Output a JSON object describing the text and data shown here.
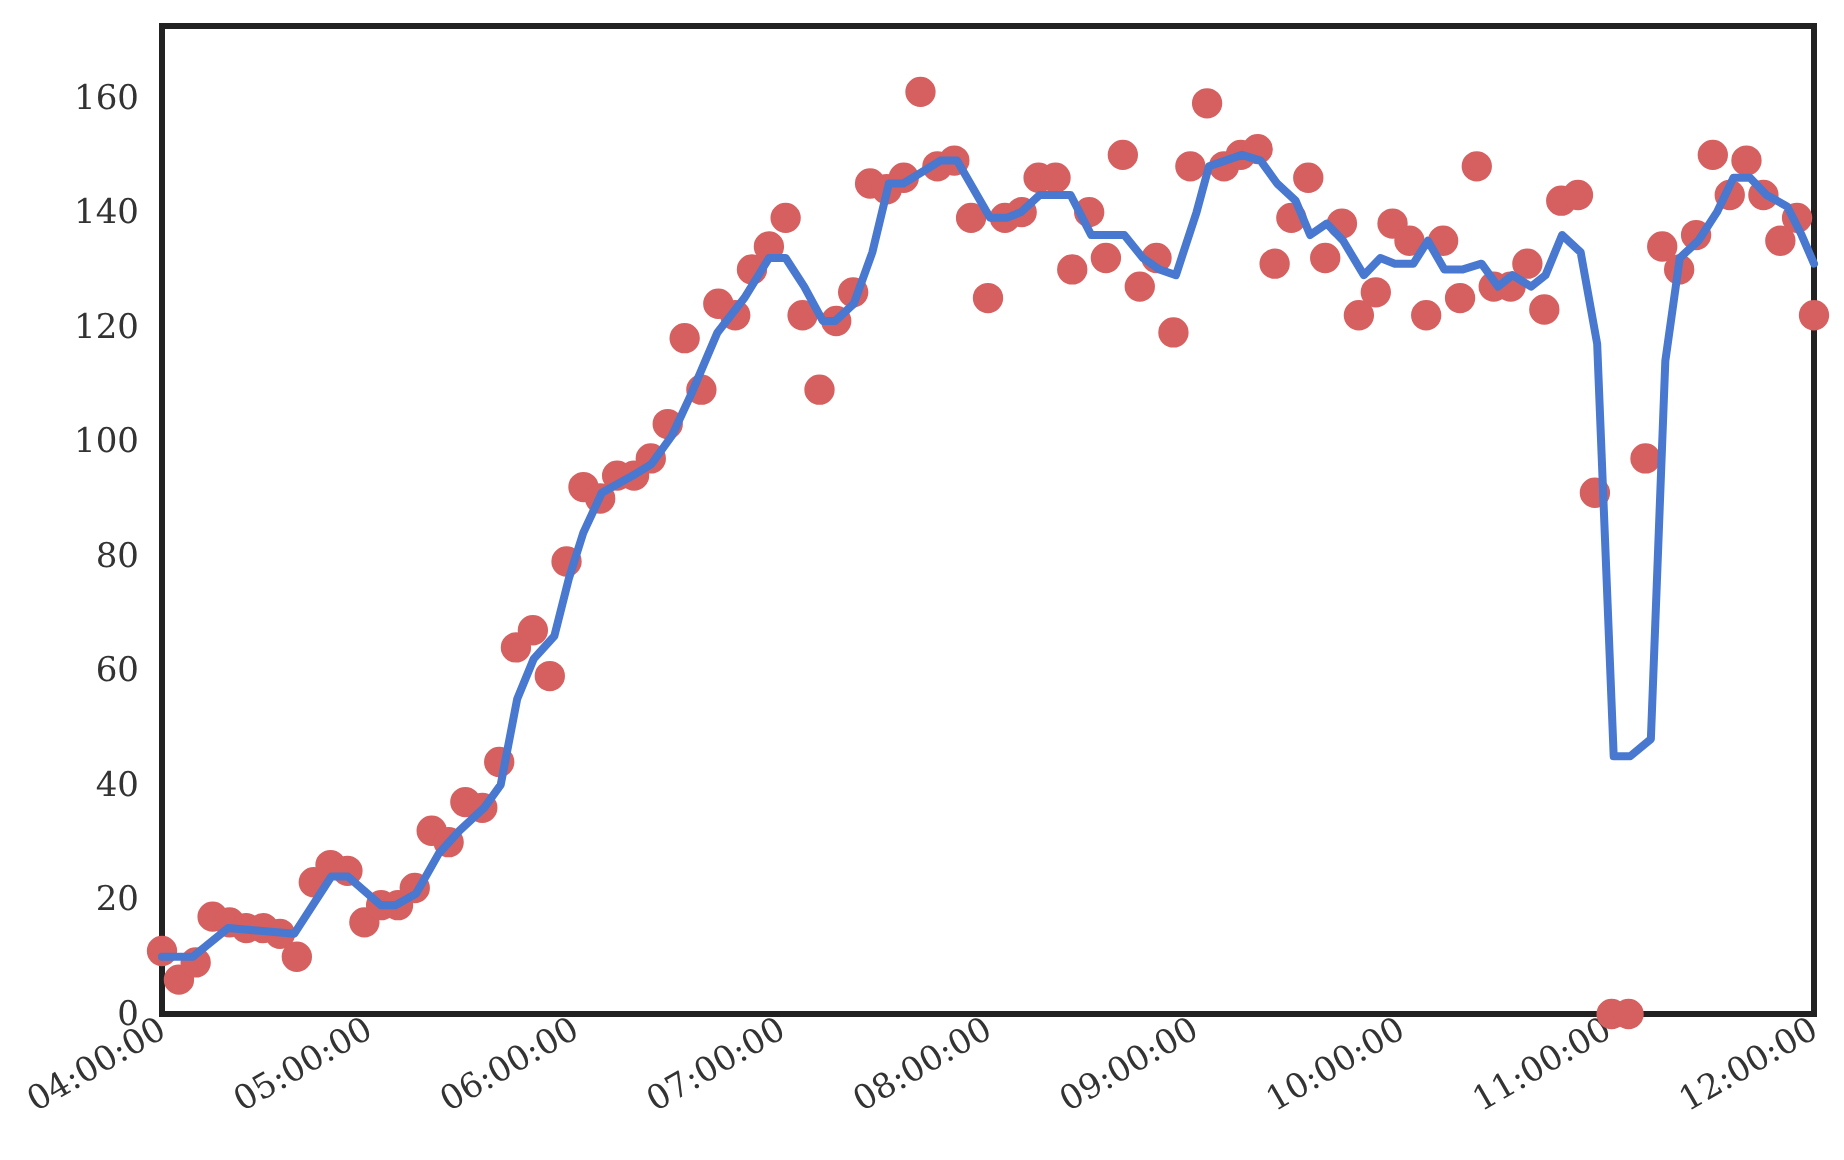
{
  "chart_data": {
    "type": "scatter",
    "xlim": [
      4,
      12
    ],
    "ylim": [
      0,
      172.5
    ],
    "xticks": [
      {
        "value": 4,
        "label": "04:00:00"
      },
      {
        "value": 5,
        "label": "05:00:00"
      },
      {
        "value": 6,
        "label": "06:00:00"
      },
      {
        "value": 7,
        "label": "07:00:00"
      },
      {
        "value": 8,
        "label": "08:00:00"
      },
      {
        "value": 9,
        "label": "09:00:00"
      },
      {
        "value": 10,
        "label": "10:00:00"
      },
      {
        "value": 11,
        "label": "11:00:00"
      },
      {
        "value": 12,
        "label": "12:00:00"
      }
    ],
    "yticks": [
      0,
      20,
      40,
      60,
      80,
      100,
      120,
      140,
      160
    ],
    "grid": false,
    "line_style": "solid",
    "series": [
      {
        "marker": "circle",
        "color": "#d65f5f",
        "x": [
          4,
          4.082,
          4.163,
          4.245,
          4.327,
          4.408,
          4.49,
          4.571,
          4.653,
          4.735,
          4.816,
          4.898,
          4.98,
          5.061,
          5.143,
          5.224,
          5.306,
          5.388,
          5.469,
          5.551,
          5.633,
          5.714,
          5.796,
          5.878,
          5.959,
          6.041,
          6.122,
          6.204,
          6.286,
          6.367,
          6.449,
          6.531,
          6.612,
          6.694,
          6.776,
          6.857,
          6.939,
          7.02,
          7.102,
          7.184,
          7.265,
          7.347,
          7.429,
          7.51,
          7.592,
          7.673,
          7.755,
          7.837,
          7.918,
          8,
          8.082,
          8.163,
          8.245,
          8.327,
          8.408,
          8.49,
          8.571,
          8.653,
          8.735,
          8.816,
          8.898,
          8.98,
          9.061,
          9.143,
          9.224,
          9.306,
          9.388,
          9.469,
          9.551,
          9.633,
          9.714,
          9.796,
          9.878,
          9.959,
          10.041,
          10.122,
          10.204,
          10.286,
          10.367,
          10.449,
          10.531,
          10.612,
          10.694,
          10.776,
          10.857,
          10.939,
          11.02,
          11.102,
          11.184,
          11.265,
          11.347,
          11.429,
          11.51,
          11.592,
          11.673,
          11.755,
          11.837,
          11.918,
          12
        ],
        "values": [
          11,
          6,
          9,
          17,
          16,
          15,
          15,
          14,
          10,
          23,
          26,
          25,
          16,
          19,
          19,
          22,
          32,
          30,
          37,
          36,
          44,
          64,
          67,
          59,
          79,
          92,
          90,
          94,
          94,
          97,
          103,
          118,
          109,
          124,
          122,
          130,
          134,
          139,
          122,
          109,
          121,
          126,
          145,
          144,
          146,
          161,
          148,
          149,
          139,
          125,
          139,
          140,
          146,
          146,
          130,
          140,
          132,
          150,
          127,
          132,
          119,
          148,
          159,
          148,
          150,
          151,
          131,
          139,
          146,
          132,
          138,
          122,
          126,
          138,
          135,
          122,
          135,
          125,
          148,
          127,
          127,
          131,
          123,
          142,
          143,
          91,
          0,
          0,
          97,
          134,
          130,
          136,
          150,
          143,
          149,
          143,
          135,
          139,
          122
        ]
      },
      {
        "type": "line",
        "color": "#4878d0",
        "x": [
          4,
          4.15,
          4.32,
          4.64,
          4.82,
          4.9,
          5.06,
          5.13,
          5.23,
          5.34,
          5.44,
          5.56,
          5.64,
          5.72,
          5.8,
          5.9,
          5.97,
          6.04,
          6.13,
          6.28,
          6.37,
          6.47,
          6.56,
          6.69,
          6.82,
          6.94,
          7.02,
          7.11,
          7.2,
          7.26,
          7.35,
          7.44,
          7.52,
          7.59,
          7.77,
          7.85,
          8.01,
          8.09,
          8.16,
          8.25,
          8.4,
          8.5,
          8.66,
          8.75,
          8.83,
          8.91,
          9.01,
          9.07,
          9.23,
          9.32,
          9.4,
          9.49,
          9.56,
          9.64,
          9.72,
          9.82,
          9.9,
          9.97,
          10.06,
          10.13,
          10.21,
          10.3,
          10.39,
          10.47,
          10.54,
          10.63,
          10.7,
          10.78,
          10.87,
          10.95,
          11.03,
          11.11,
          11.21,
          11.28,
          11.35,
          11.44,
          11.53,
          11.61,
          11.69,
          11.77,
          11.87,
          11.94,
          12
        ],
        "values": [
          10,
          10,
          15,
          14,
          24,
          24,
          19,
          19,
          21,
          28,
          32,
          36,
          40,
          55,
          62,
          66,
          76,
          84,
          91,
          94,
          96,
          101,
          108,
          119,
          125,
          132,
          132,
          127,
          121,
          121,
          124,
          133,
          145,
          145,
          149,
          149,
          139,
          139,
          140,
          143,
          143,
          136,
          136,
          132,
          130,
          129,
          140,
          148,
          150,
          149,
          145,
          142,
          136,
          138,
          135,
          129,
          132,
          131,
          131,
          135,
          130,
          130,
          131,
          127,
          129,
          127,
          129,
          136,
          133,
          117,
          45,
          45,
          48,
          114,
          132,
          135,
          140,
          146,
          146,
          143,
          141,
          136,
          131
        ]
      }
    ]
  }
}
